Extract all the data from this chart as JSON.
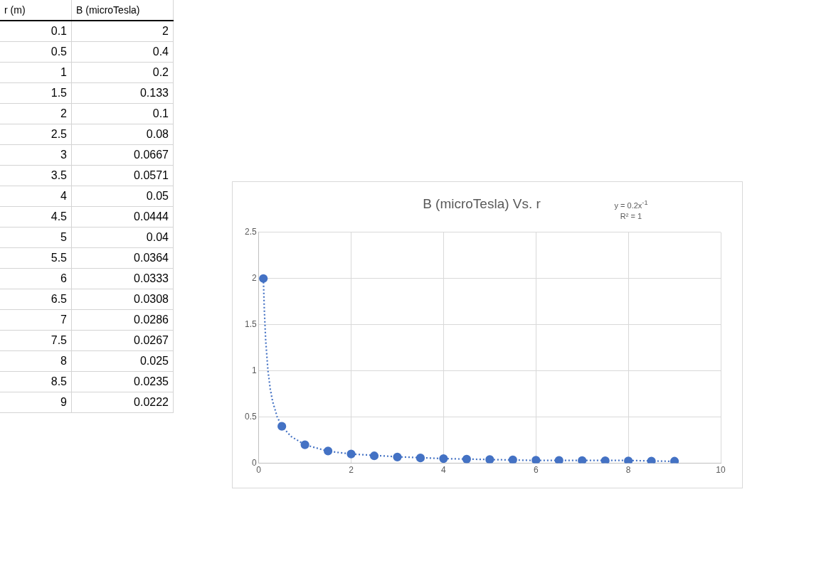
{
  "chart_data": [
    {
      "type": "other",
      "annotations": [
        "r (m)",
        "B (microTesla)",
        "0.1",
        "2",
        "0.5",
        "0.4",
        "1",
        "0.2",
        "1.5",
        "0.133",
        "2",
        "0.1",
        "2.5",
        "0.08",
        "3",
        "0.0667",
        "3.5",
        "0.0571",
        "4",
        "0.05",
        "4.5",
        "0.0444",
        "5",
        "0.04",
        "5.5",
        "0.0364",
        "6",
        "0.0333",
        "6.5",
        "0.0308",
        "7",
        "0.0286",
        "7.5",
        "0.0267",
        "8",
        "0.025",
        "8.5",
        "0.0235",
        "9",
        "0.0222"
      ]
    },
    {
      "type": "scatter",
      "title": "B (microTesla) Vs. r",
      "annotations": [
        "y = 0.2x$^{-1}$",
        "R² = 1"
      ],
      "x": [
        0.1,
        0.5,
        1,
        1.5,
        2,
        2.5,
        3,
        3.5,
        4,
        4.5,
        5,
        5.5,
        6,
        6.5,
        7,
        7.5,
        8,
        8.5,
        9
      ],
      "series": [
        {
          "type": "scatter",
          "color": "#4472c4",
          "marker": "circle",
          "values": [
            2,
            0.4,
            0.2,
            0.133,
            0.1,
            0.08,
            0.0667,
            0.0571,
            0.05,
            0.0444,
            0.04,
            0.0364,
            0.0333,
            0.0308,
            0.0286,
            0.0267,
            0.025,
            0.0235,
            0.0222
          ]
        },
        {
          "type": "line",
          "color": "#4472c4",
          "marker": "none",
          "line_style": "dotted",
          "x": [
            0.1,
            0.12,
            0.15,
            0.2,
            0.25,
            0.3,
            0.4,
            0.5,
            0.7,
            1,
            1.5,
            2,
            3,
            4,
            5,
            6,
            7,
            8,
            9
          ],
          "values": [
            2,
            1.67,
            1.33,
            1,
            0.8,
            0.67,
            0.5,
            0.4,
            0.29,
            0.2,
            0.13,
            0.1,
            0.07,
            0.05,
            0.04,
            0.03,
            0.03,
            0.03,
            0.02
          ]
        }
      ],
      "xlim": [
        0,
        10
      ],
      "xticks": [
        0,
        2,
        4,
        6,
        8,
        10
      ],
      "ylim": [
        0,
        2.5
      ],
      "yticks": [
        0,
        0.5,
        1,
        1.5,
        2,
        2.5
      ],
      "grid": true,
      "legend": false
    }
  ]
}
